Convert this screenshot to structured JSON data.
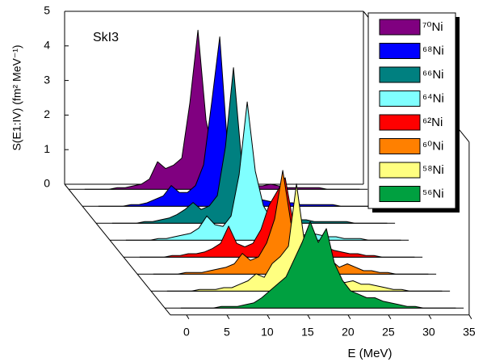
{
  "chart_data": {
    "type": "waterfall",
    "annotation": "SkI3",
    "xlabel": "E (MeV)",
    "ylabel": "S(E1:IV) (fm² MeV⁻¹)",
    "xlim": [
      -2,
      35
    ],
    "xticks": [
      0,
      5,
      10,
      15,
      20,
      25,
      30,
      35
    ],
    "ylim": [
      0,
      5
    ],
    "yticks": [
      0,
      1,
      2,
      3,
      4,
      5
    ],
    "x": [
      0,
      1,
      2,
      3,
      4,
      5,
      6,
      7,
      8,
      9,
      10,
      11,
      12,
      13,
      14,
      15,
      16,
      17,
      18,
      19,
      20,
      21,
      22,
      23,
      24,
      25,
      26,
      27,
      28,
      29,
      30,
      31,
      32,
      33,
      34
    ],
    "series": [
      {
        "name": "⁷⁰Ni",
        "color": "#800080",
        "values": [
          0,
          0,
          0,
          0,
          0.05,
          0.05,
          0.1,
          0.15,
          0.3,
          0.8,
          0.6,
          0.7,
          0.9,
          2.5,
          4.6,
          2.0,
          0.9,
          0.5,
          0.3,
          0.2,
          0.15,
          0.1,
          0.1,
          0.15,
          0.1,
          0.05,
          0.05,
          0.05,
          0.05,
          0.05,
          0,
          0,
          0,
          0,
          0
        ]
      },
      {
        "name": "⁶⁸Ni",
        "color": "#0000ff",
        "values": [
          0,
          0,
          0,
          0,
          0.05,
          0.05,
          0.1,
          0.2,
          0.3,
          0.6,
          0.4,
          0.4,
          0.6,
          1.2,
          3.0,
          4.9,
          1.6,
          0.7,
          0.4,
          0.3,
          0.2,
          0.15,
          0.1,
          0.1,
          0.1,
          0.05,
          0.05,
          0.05,
          0.05,
          0.05,
          0,
          0,
          0,
          0,
          0
        ]
      },
      {
        "name": "⁶⁶Ni",
        "color": "#008080",
        "values": [
          0,
          0,
          0,
          0,
          0.05,
          0.05,
          0.1,
          0.15,
          0.25,
          0.4,
          0.6,
          0.4,
          0.5,
          0.8,
          2.2,
          4.5,
          1.8,
          0.8,
          0.5,
          0.3,
          0.2,
          0.15,
          0.1,
          0.1,
          0.1,
          0.05,
          0.05,
          0.05,
          0.05,
          0.05,
          0,
          0,
          0,
          0,
          0
        ]
      },
      {
        "name": "⁶⁴Ni",
        "color": "#80ffff",
        "values": [
          0,
          0,
          0,
          0,
          0.05,
          0.05,
          0.1,
          0.15,
          0.2,
          0.35,
          0.7,
          0.45,
          0.4,
          0.7,
          1.9,
          4.0,
          2.0,
          1.0,
          0.6,
          0.4,
          0.3,
          0.2,
          0.15,
          0.2,
          0.15,
          0.1,
          0.1,
          0.05,
          0.05,
          0.05,
          0,
          0,
          0,
          0,
          0
        ]
      },
      {
        "name": "⁶²Ni",
        "color": "#ff0000",
        "values": [
          0,
          0,
          0,
          0,
          0.05,
          0.05,
          0.1,
          0.1,
          0.15,
          0.25,
          0.4,
          0.9,
          0.4,
          0.3,
          0.4,
          0.8,
          1.5,
          1.9,
          2.3,
          1.0,
          0.5,
          0.3,
          0.2,
          0.3,
          0.2,
          0.15,
          0.1,
          0.1,
          0.05,
          0.05,
          0,
          0,
          0,
          0,
          0
        ]
      },
      {
        "name": "⁶⁰Ni",
        "color": "#ff8000",
        "values": [
          0,
          0,
          0,
          0,
          0.05,
          0.05,
          0.05,
          0.1,
          0.15,
          0.2,
          0.3,
          0.6,
          0.4,
          0.5,
          0.9,
          1.6,
          3.0,
          1.5,
          0.8,
          0.5,
          0.3,
          0.3,
          0.4,
          0.2,
          0.3,
          0.2,
          0.1,
          0.1,
          0.05,
          0.05,
          0,
          0,
          0,
          0,
          0
        ]
      },
      {
        "name": "⁵⁸Ni",
        "color": "#ffff80",
        "values": [
          0,
          0,
          0,
          0,
          0.05,
          0.05,
          0.05,
          0.1,
          0.1,
          0.2,
          0.3,
          0.5,
          0.4,
          0.8,
          1.0,
          1.3,
          3.1,
          1.4,
          0.7,
          0.5,
          0.3,
          0.3,
          0.25,
          0.3,
          0.2,
          0.2,
          0.15,
          0.1,
          0.05,
          0.05,
          0,
          0,
          0,
          0,
          0
        ]
      },
      {
        "name": "⁵⁶Ni",
        "color": "#00a040",
        "values": [
          0,
          0,
          0,
          0,
          0,
          0.05,
          0.05,
          0.05,
          0.1,
          0.15,
          0.3,
          0.5,
          0.7,
          0.9,
          1.4,
          1.9,
          2.5,
          1.9,
          2.3,
          1.3,
          0.8,
          0.5,
          0.4,
          0.3,
          0.3,
          0.2,
          0.15,
          0.1,
          0.05,
          0.05,
          0,
          0,
          0,
          0,
          0
        ]
      }
    ]
  }
}
